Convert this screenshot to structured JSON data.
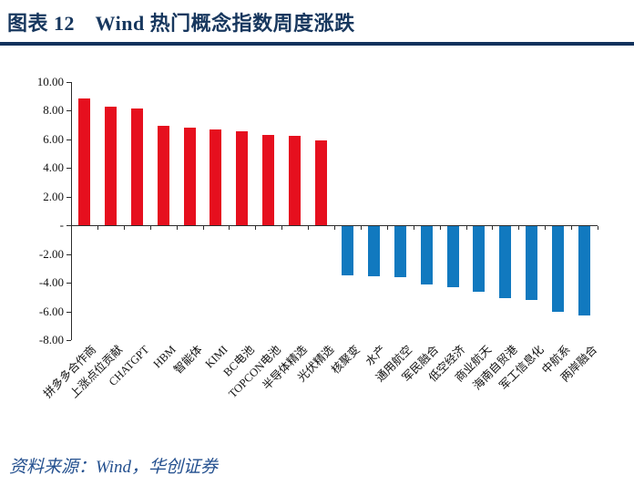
{
  "header": {
    "title": "图表 12　Wind 热门概念指数周度涨跌"
  },
  "footer": {
    "source": "资料来源：Wind，华创证券"
  },
  "colors": {
    "title_text": "#17375E",
    "title_rule": "#12325C",
    "positive_bar": "#E60F1E",
    "negative_bar": "#1179BF",
    "axis": "#2B2B2B",
    "source_text": "#24508F"
  },
  "chart_data": {
    "type": "bar",
    "title": "Wind 热门概念指数周度涨跌",
    "categories": [
      "拼多多合作商",
      "上涨点位贡献",
      "CHATGPT",
      "HBM",
      "智能体",
      "KIMI",
      "BC电池",
      "TOPCON电池",
      "半导体精选",
      "光伏精选",
      "核聚变",
      "水产",
      "通用航空",
      "军民融合",
      "低空经济",
      "商业航天",
      "海南自贸港",
      "军工信息化",
      "中航系",
      "两岸融合"
    ],
    "values": [
      8.85,
      8.25,
      8.1,
      6.9,
      6.8,
      6.65,
      6.55,
      6.3,
      6.2,
      5.9,
      -3.45,
      -3.5,
      -3.55,
      -4.05,
      -4.25,
      -4.55,
      -5.0,
      -5.15,
      -5.95,
      -6.25
    ],
    "xlabel": "",
    "ylabel": "",
    "ylim": [
      -8,
      10
    ],
    "grid": false,
    "legend_position": "none",
    "yticks": [
      {
        "label": "10.00",
        "value": 10
      },
      {
        "label": "8.00",
        "value": 8
      },
      {
        "label": "6.00",
        "value": 6
      },
      {
        "label": "4.00",
        "value": 4
      },
      {
        "label": "2.00",
        "value": 2
      },
      {
        "label": "-",
        "value": 0
      },
      {
        "label": "-2.00",
        "value": -2
      },
      {
        "label": "-4.00",
        "value": -4
      },
      {
        "label": "-6.00",
        "value": -6
      },
      {
        "label": "-8.00",
        "value": -8
      }
    ]
  }
}
